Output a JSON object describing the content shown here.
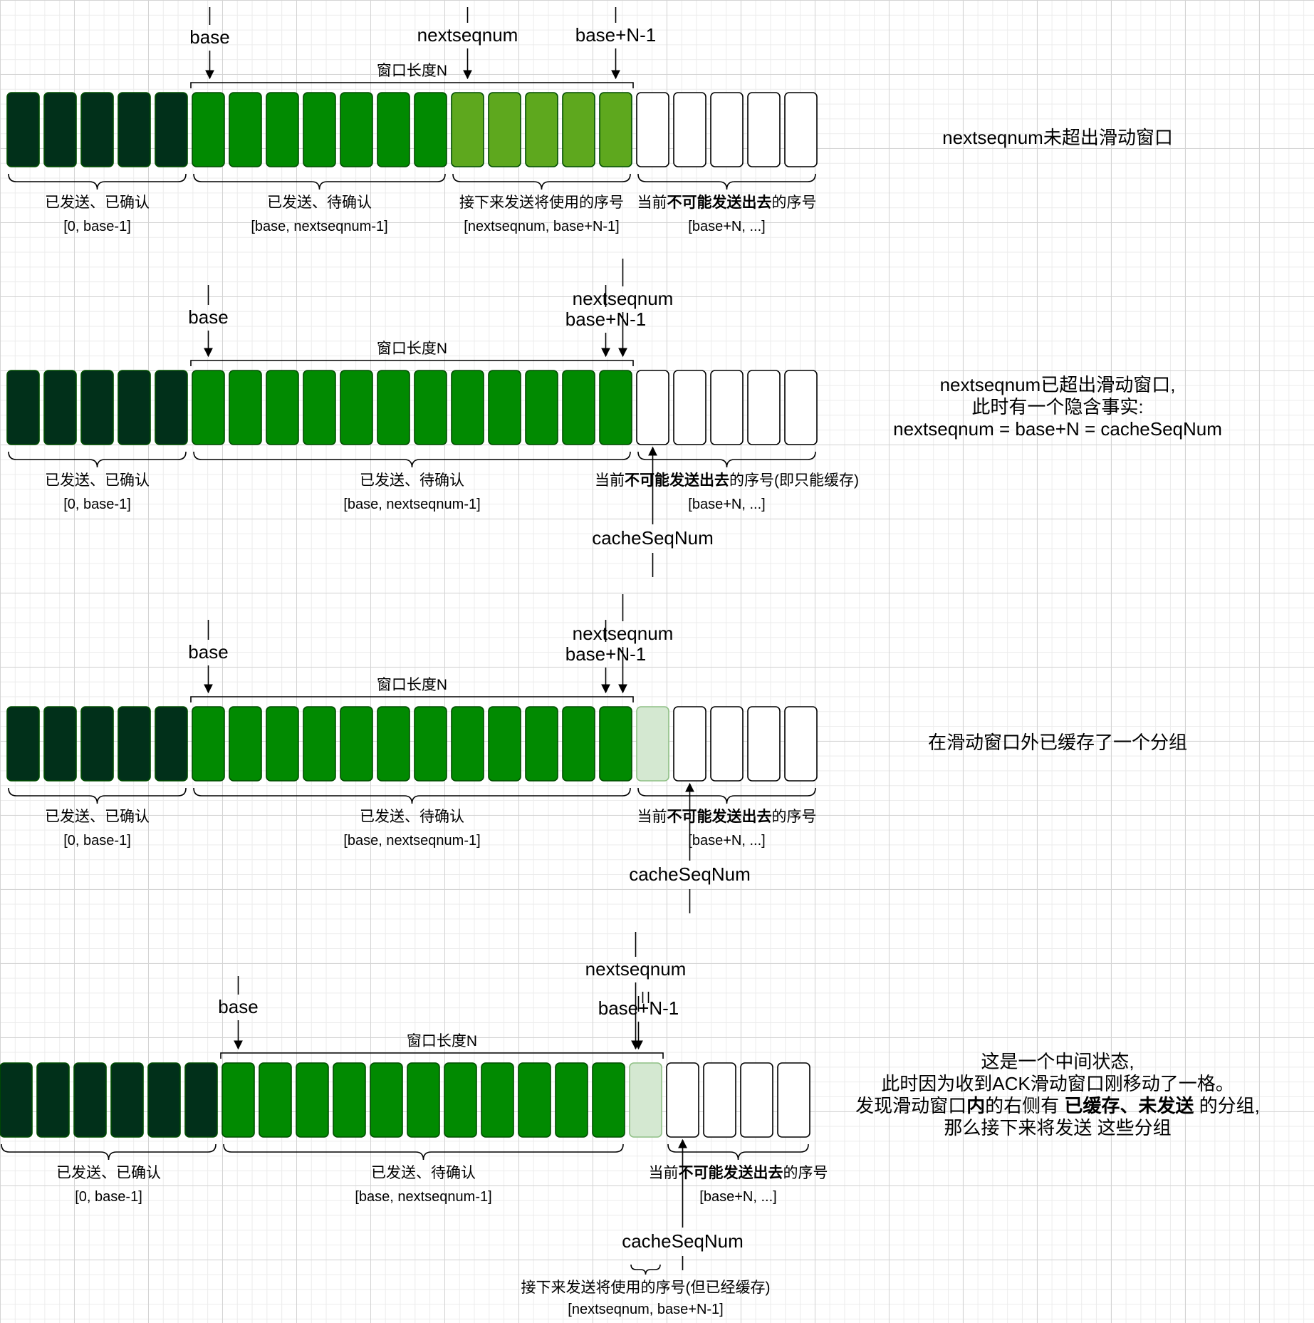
{
  "colors": {
    "acked": "#01301a",
    "sent_unacked": "#018a01",
    "usable": "#5ea81e",
    "cached": "#d4e8d1",
    "unused": "#ffffff"
  },
  "panels": [
    {
      "cells": [
        "acked",
        "acked",
        "acked",
        "acked",
        "acked",
        "sent_unacked",
        "sent_unacked",
        "sent_unacked",
        "sent_unacked",
        "sent_unacked",
        "sent_unacked",
        "sent_unacked",
        "usable",
        "usable",
        "usable",
        "usable",
        "usable",
        "unused",
        "unused",
        "unused",
        "unused",
        "unused"
      ],
      "pointers": [
        {
          "label": "base",
          "points_to_cell": 5
        },
        {
          "label": "nextseqnum",
          "points_to_cell": 12
        },
        {
          "label": "base+N-1",
          "points_to_cell": 16
        }
      ],
      "cache_pointer": null,
      "window_label": "窗口长度N",
      "window_cells": [
        5,
        16
      ],
      "groups": [
        {
          "cells": [
            0,
            4
          ],
          "label": "已发送、已确认",
          "range": "[0, base-1]"
        },
        {
          "cells": [
            5,
            11
          ],
          "label": "已发送、待确认",
          "range": "[base, nextseqnum-1]"
        },
        {
          "cells": [
            12,
            16
          ],
          "label": "接下来发送将使用的序号",
          "range": "[nextseqnum, base+N-1]"
        },
        {
          "cells": [
            17,
            21
          ],
          "label_parts": [
            "当前",
            "不可能发送出去",
            "的序号"
          ],
          "range": "[base+N, ...]"
        }
      ],
      "note": [
        "nextseqnum未超出滑动窗口"
      ]
    },
    {
      "cells": [
        "acked",
        "acked",
        "acked",
        "acked",
        "acked",
        "sent_unacked",
        "sent_unacked",
        "sent_unacked",
        "sent_unacked",
        "sent_unacked",
        "sent_unacked",
        "sent_unacked",
        "sent_unacked",
        "sent_unacked",
        "sent_unacked",
        "sent_unacked",
        "sent_unacked",
        "unused",
        "unused",
        "unused",
        "unused",
        "unused"
      ],
      "pointers": [
        {
          "label": "base",
          "points_to_cell": 5
        },
        {
          "label": "base+N-1",
          "points_to_cell": 16
        },
        {
          "label": "nextseqnum",
          "points_to_cell": 17
        }
      ],
      "cache_pointer": {
        "label": "cacheSeqNum",
        "points_to_cell": 17
      },
      "window_label": "窗口长度N",
      "window_cells": [
        5,
        16
      ],
      "groups": [
        {
          "cells": [
            0,
            4
          ],
          "label": "已发送、已确认",
          "range": "[0, base-1]"
        },
        {
          "cells": [
            5,
            16
          ],
          "label": "已发送、待确认",
          "range": "[base, nextseqnum-1]"
        },
        {
          "cells": [
            17,
            21
          ],
          "label_parts": [
            "当前",
            "不可能发送出去",
            "的序号(即只能缓存)"
          ],
          "range": "[base+N, ...]"
        }
      ],
      "note": [
        "nextseqnum已超出滑动窗口,",
        "此时有一个隐含事实:",
        "nextseqnum = base+N = cacheSeqNum"
      ]
    },
    {
      "cells": [
        "acked",
        "acked",
        "acked",
        "acked",
        "acked",
        "sent_unacked",
        "sent_unacked",
        "sent_unacked",
        "sent_unacked",
        "sent_unacked",
        "sent_unacked",
        "sent_unacked",
        "sent_unacked",
        "sent_unacked",
        "sent_unacked",
        "sent_unacked",
        "sent_unacked",
        "cached",
        "unused",
        "unused",
        "unused",
        "unused"
      ],
      "pointers": [
        {
          "label": "base",
          "points_to_cell": 5
        },
        {
          "label": "base+N-1",
          "points_to_cell": 16
        },
        {
          "label": "nextseqnum",
          "points_to_cell": 17
        }
      ],
      "cache_pointer": {
        "label": "cacheSeqNum",
        "points_to_cell": 18
      },
      "window_label": "窗口长度N",
      "window_cells": [
        5,
        16
      ],
      "groups": [
        {
          "cells": [
            0,
            4
          ],
          "label": "已发送、已确认",
          "range": "[0, base-1]"
        },
        {
          "cells": [
            5,
            16
          ],
          "label": "已发送、待确认",
          "range": "[base, nextseqnum-1]"
        },
        {
          "cells": [
            17,
            21
          ],
          "label_parts": [
            "当前",
            "不可能发送出去",
            "的序号"
          ],
          "range": "[base+N, ...]"
        }
      ],
      "note": [
        "在滑动窗口外已缓存了一个分组"
      ]
    },
    {
      "cells": [
        "acked",
        "acked",
        "acked",
        "acked",
        "acked",
        "acked",
        "sent_unacked",
        "sent_unacked",
        "sent_unacked",
        "sent_unacked",
        "sent_unacked",
        "sent_unacked",
        "sent_unacked",
        "sent_unacked",
        "sent_unacked",
        "sent_unacked",
        "sent_unacked",
        "cached",
        "unused",
        "unused",
        "unused",
        "unused"
      ],
      "pointers": [
        {
          "label": "base",
          "points_to_cell": 6
        },
        {
          "label": "nextseqnum",
          "points_to_cell": 17
        },
        {
          "label": "||",
          "points_to_cell": 17
        },
        {
          "label": "base+N-1",
          "points_to_cell": 17
        }
      ],
      "cache_pointer": {
        "label": "cacheSeqNum",
        "points_to_cell": 18
      },
      "window_label": "窗口长度N",
      "window_cells": [
        6,
        17
      ],
      "groups": [
        {
          "cells": [
            0,
            5
          ],
          "label": "已发送、已确认",
          "range": "[0, base-1]"
        },
        {
          "cells": [
            6,
            16
          ],
          "label": "已发送、待确认",
          "range": "[base, nextseqnum-1]"
        },
        {
          "cells": [
            18,
            21
          ],
          "label_parts": [
            "当前",
            "不可能发送出去",
            "的序号"
          ],
          "range": "[base+N, ...]"
        },
        {
          "cells": [
            17,
            17
          ],
          "label": "接下来发送将使用的序号(但已经缓存)",
          "range": "[nextseqnum, base+N-1]"
        }
      ],
      "note_parts": [
        [
          "这是一个中间状态,"
        ],
        [
          "此时因为收到ACK滑动窗口刚移动了一格。"
        ],
        [
          "发现滑动窗口",
          {
            "b": "内"
          },
          "的右侧有 ",
          {
            "b": "已缓存、未发送"
          },
          " 的分组,"
        ],
        [
          "那么接下来将发送 这些分组"
        ]
      ]
    }
  ]
}
